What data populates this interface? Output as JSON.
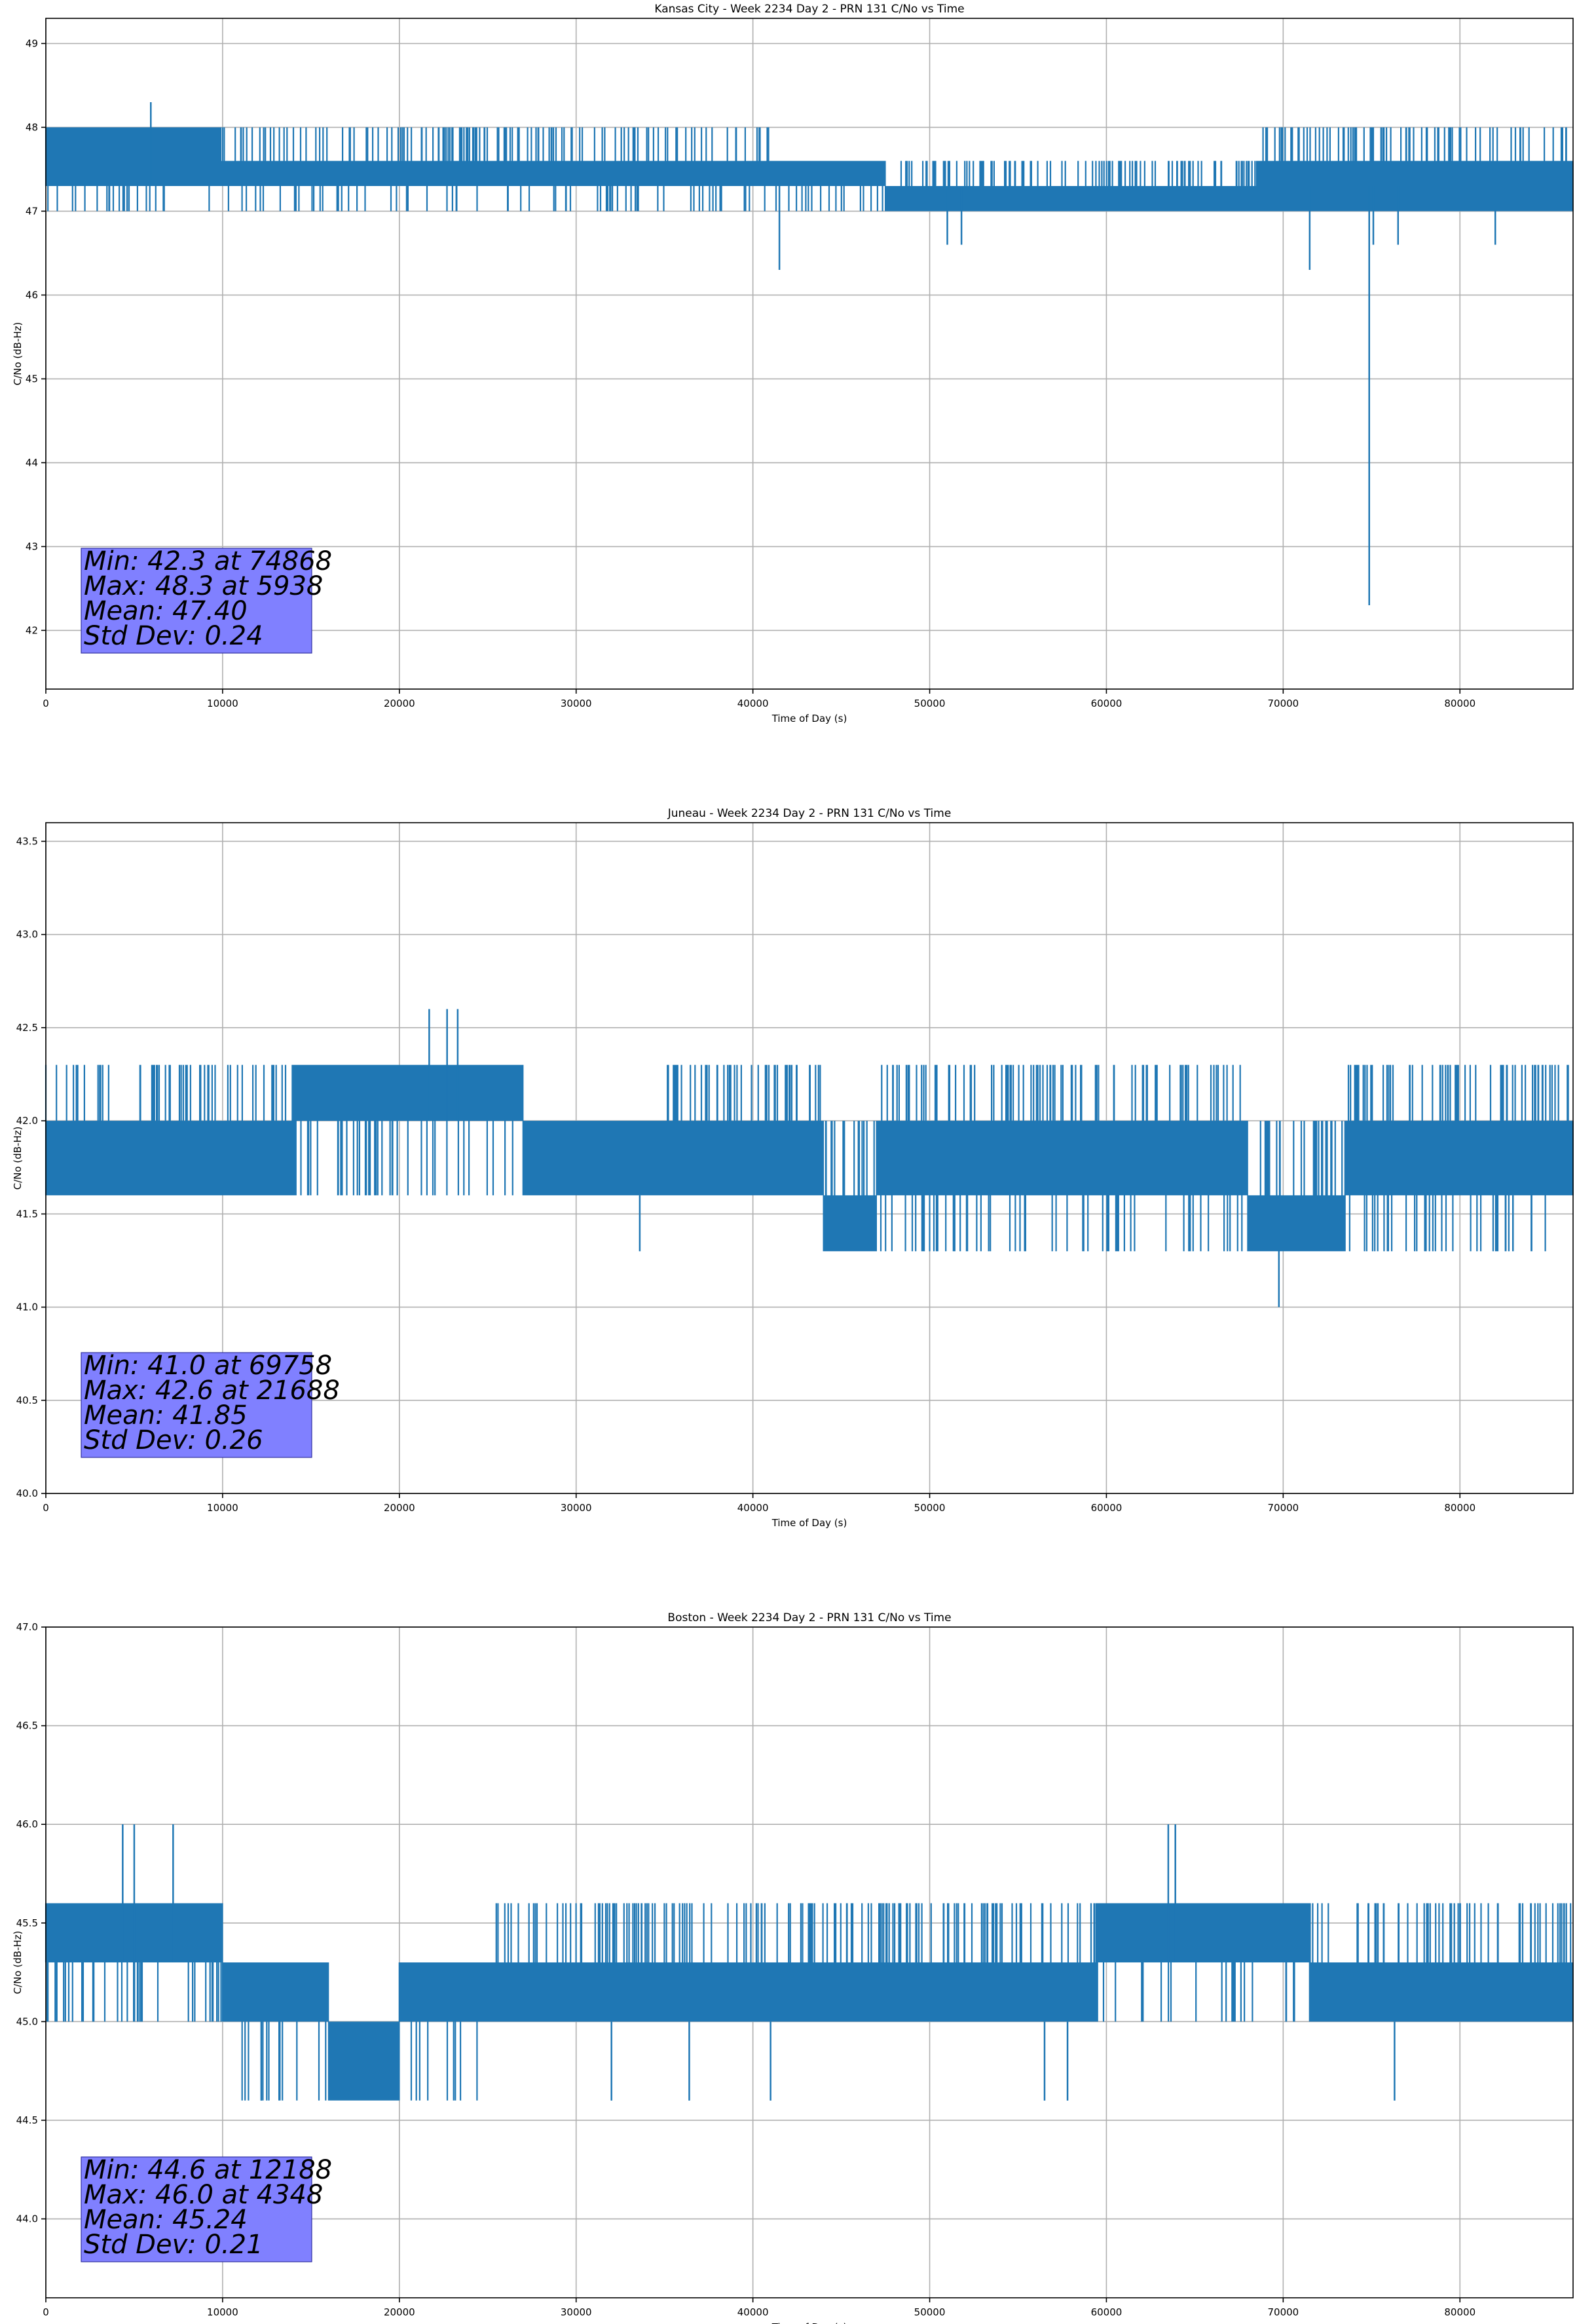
{
  "chart_data": [
    {
      "type": "line",
      "title": "Kansas City - Week 2234 Day 2 - PRN 131 C/No vs Time",
      "xlabel": "Time of Day (s)",
      "ylabel": "C/No (dB-Hz)",
      "xlim": [
        0,
        86400
      ],
      "ylim": [
        41.3,
        49.3
      ],
      "xticks": [
        0,
        10000,
        20000,
        30000,
        40000,
        50000,
        60000,
        70000,
        80000
      ],
      "yticks": [
        42,
        43,
        44,
        45,
        46,
        47,
        48,
        49
      ],
      "ytick_labels": [
        "42",
        "43",
        "44",
        "45",
        "46",
        "47",
        "48",
        "49"
      ],
      "grid": true,
      "line_color": "#1f77b4",
      "series": [
        {
          "name": "C/No",
          "segments": [
            {
              "x0": 0,
              "x1": 9900,
              "lo": 47.3,
              "hi": 48.0,
              "spread": [
                47.0,
                48.0
              ]
            },
            {
              "x0": 9900,
              "x1": 41000,
              "lo": 47.3,
              "hi": 47.6,
              "spread": [
                47.0,
                48.0
              ]
            },
            {
              "x0": 41000,
              "x1": 47500,
              "lo": 47.3,
              "hi": 47.6,
              "spread": [
                47.0,
                47.6
              ]
            },
            {
              "x0": 47500,
              "x1": 68500,
              "lo": 47.0,
              "hi": 47.3,
              "spread": [
                47.0,
                47.6
              ]
            },
            {
              "x0": 68500,
              "x1": 86400,
              "lo": 47.0,
              "hi": 47.6,
              "spread": [
                47.0,
                48.0
              ]
            }
          ],
          "spikes": [
            {
              "x": 5938,
              "y": 48.3
            },
            {
              "x": 4600,
              "y": 47.0
            },
            {
              "x": 41500,
              "y": 46.3
            },
            {
              "x": 51000,
              "y": 46.6
            },
            {
              "x": 51800,
              "y": 46.6
            },
            {
              "x": 71500,
              "y": 46.3
            },
            {
              "x": 74868,
              "y": 42.3
            },
            {
              "x": 75100,
              "y": 46.6
            },
            {
              "x": 76500,
              "y": 46.6
            },
            {
              "x": 82000,
              "y": 46.6
            }
          ]
        }
      ],
      "annotation": [
        "Min: 42.3 at 74868",
        "Max: 48.3 at 5938",
        "Mean: 47.40",
        "Std Dev: 0.24"
      ],
      "annotation_color": "#8080ff"
    },
    {
      "type": "line",
      "title": "Juneau - Week 2234 Day 2 - PRN 131 C/No vs Time",
      "xlabel": "Time of Day (s)",
      "ylabel": "C/No (dB-Hz)",
      "xlim": [
        0,
        86400
      ],
      "ylim": [
        40.0,
        43.6
      ],
      "xticks": [
        0,
        10000,
        20000,
        30000,
        40000,
        50000,
        60000,
        70000,
        80000
      ],
      "yticks": [
        40.0,
        40.5,
        41.0,
        41.5,
        42.0,
        42.5,
        43.0,
        43.5
      ],
      "ytick_labels": [
        "40.0",
        "40.5",
        "41.0",
        "41.5",
        "42.0",
        "42.5",
        "43.0",
        "43.5"
      ],
      "grid": true,
      "line_color": "#1f77b4",
      "series": [
        {
          "name": "C/No",
          "segments": [
            {
              "x0": 0,
              "x1": 14000,
              "lo": 41.6,
              "hi": 42.0,
              "spread": [
                41.6,
                42.3
              ]
            },
            {
              "x0": 14000,
              "x1": 27000,
              "lo": 42.0,
              "hi": 42.3,
              "spread": [
                41.6,
                42.3
              ]
            },
            {
              "x0": 27000,
              "x1": 35000,
              "lo": 41.6,
              "hi": 42.0,
              "spread": [
                41.6,
                42.0
              ]
            },
            {
              "x0": 35000,
              "x1": 44000,
              "lo": 41.6,
              "hi": 42.0,
              "spread": [
                41.6,
                42.3
              ]
            },
            {
              "x0": 44000,
              "x1": 47000,
              "lo": 41.3,
              "hi": 41.6,
              "spread": [
                41.3,
                42.0
              ]
            },
            {
              "x0": 47000,
              "x1": 68000,
              "lo": 41.6,
              "hi": 42.0,
              "spread": [
                41.3,
                42.3
              ]
            },
            {
              "x0": 68000,
              "x1": 73500,
              "lo": 41.3,
              "hi": 41.6,
              "spread": [
                41.3,
                42.0
              ]
            },
            {
              "x0": 73500,
              "x1": 86400,
              "lo": 41.6,
              "hi": 42.0,
              "spread": [
                41.3,
                42.3
              ]
            }
          ],
          "spikes": [
            {
              "x": 21688,
              "y": 42.6
            },
            {
              "x": 22700,
              "y": 42.6
            },
            {
              "x": 23300,
              "y": 42.6
            },
            {
              "x": 33600,
              "y": 41.3
            },
            {
              "x": 69758,
              "y": 41.0
            },
            {
              "x": 83000,
              "y": 41.3
            }
          ]
        }
      ],
      "annotation": [
        "Min: 41.0 at 69758",
        "Max: 42.6 at 21688",
        "Mean: 41.85",
        "Std Dev: 0.26"
      ],
      "annotation_color": "#8080ff"
    },
    {
      "type": "line",
      "title": "Boston - Week 2234 Day 2 - PRN 131 C/No vs Time",
      "xlabel": "Time of Day (s)",
      "ylabel": "C/No (dB-Hz)",
      "xlim": [
        0,
        86400
      ],
      "ylim": [
        43.6,
        47.0
      ],
      "xticks": [
        0,
        10000,
        20000,
        30000,
        40000,
        50000,
        60000,
        70000,
        80000
      ],
      "yticks": [
        44.0,
        44.5,
        45.0,
        45.5,
        46.0,
        46.5,
        47.0
      ],
      "ytick_labels": [
        "44.0",
        "44.5",
        "45.0",
        "45.5",
        "46.0",
        "46.5",
        "47.0"
      ],
      "grid": true,
      "line_color": "#1f77b4",
      "series": [
        {
          "name": "C/No",
          "segments": [
            {
              "x0": 0,
              "x1": 10000,
              "lo": 45.3,
              "hi": 45.6,
              "spread": [
                45.0,
                45.6
              ]
            },
            {
              "x0": 10000,
              "x1": 16000,
              "lo": 45.0,
              "hi": 45.3,
              "spread": [
                44.6,
                45.3
              ]
            },
            {
              "x0": 16000,
              "x1": 20000,
              "lo": 44.6,
              "hi": 45.0,
              "spread": [
                44.6,
                45.0
              ]
            },
            {
              "x0": 20000,
              "x1": 24500,
              "lo": 45.0,
              "hi": 45.3,
              "spread": [
                44.6,
                45.3
              ]
            },
            {
              "x0": 24500,
              "x1": 59500,
              "lo": 45.0,
              "hi": 45.3,
              "spread": [
                45.0,
                45.6
              ]
            },
            {
              "x0": 59500,
              "x1": 71500,
              "lo": 45.3,
              "hi": 45.6,
              "spread": [
                45.0,
                45.6
              ]
            },
            {
              "x0": 71500,
              "x1": 86400,
              "lo": 45.0,
              "hi": 45.3,
              "spread": [
                45.0,
                45.6
              ]
            }
          ],
          "spikes": [
            {
              "x": 4348,
              "y": 46.0
            },
            {
              "x": 5000,
              "y": 46.0
            },
            {
              "x": 7200,
              "y": 46.0
            },
            {
              "x": 12188,
              "y": 44.6
            },
            {
              "x": 32000,
              "y": 44.6
            },
            {
              "x": 36400,
              "y": 44.6
            },
            {
              "x": 41000,
              "y": 44.6
            },
            {
              "x": 56500,
              "y": 44.6
            },
            {
              "x": 57800,
              "y": 44.6
            },
            {
              "x": 63500,
              "y": 46.0
            },
            {
              "x": 63900,
              "y": 46.0
            },
            {
              "x": 76300,
              "y": 44.6
            }
          ]
        }
      ],
      "annotation": [
        "Min: 44.6 at 12188",
        "Max: 46.0 at 4348",
        "Mean: 45.24",
        "Std Dev: 0.21"
      ],
      "annotation_color": "#8080ff"
    }
  ]
}
